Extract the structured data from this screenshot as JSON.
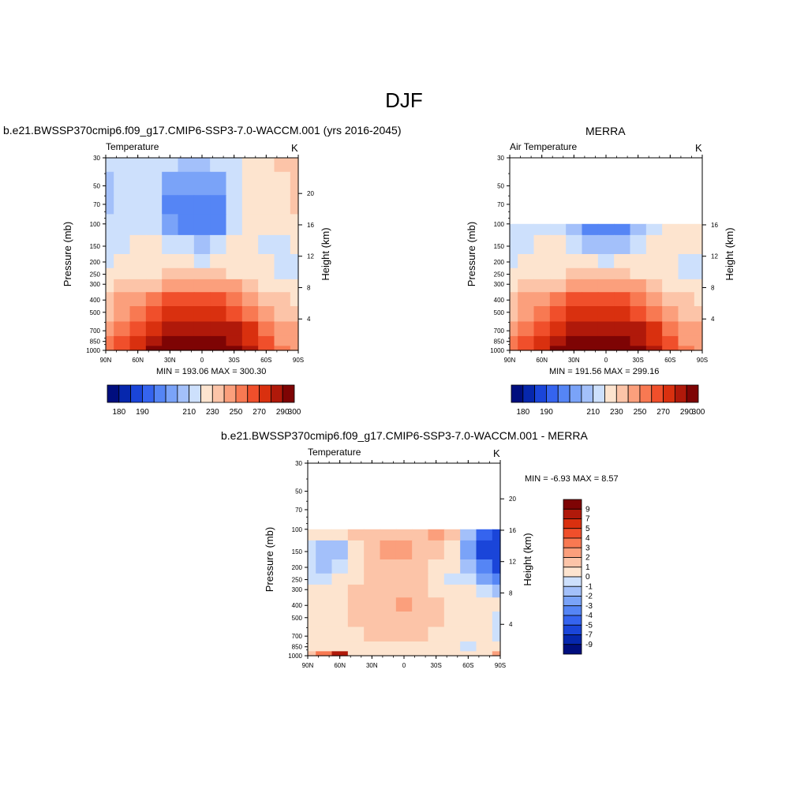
{
  "page": {
    "title": "DJF",
    "var_label": "Temperature",
    "unit": "K"
  },
  "panels": {
    "model": {
      "title": "b.e21.BWSSP370cmip6.f09_g17.CMIP6-SSP3-7.0-WACCM.001 (yrs 2016-2045)",
      "var_label": "Temperature",
      "unit": "K",
      "minmax": "MIN = 193.06  MAX = 300.30"
    },
    "obs": {
      "title": "MERRA",
      "var_label": "Air Temperature",
      "unit": "K",
      "minmax": "MIN = 191.56  MAX = 299.16"
    },
    "diff": {
      "title": "b.e21.BWSSP370cmip6.f09_g17.CMIP6-SSP3-7.0-WACCM.001 - MERRA",
      "var_label": "Temperature",
      "unit": "K",
      "minmax": "MIN =  -6.93  MAX =   8.57"
    }
  },
  "axes": {
    "ylabel_left": "Pressure (mb)",
    "ylabel_right": "Height (km)"
  },
  "colors": {
    "temp_palette": [
      "#000e7e",
      "#0627ad",
      "#1a45d9",
      "#3564ef",
      "#5585f5",
      "#7aa3f8",
      "#a3c0fa",
      "#cde0fc",
      "#fde4cf",
      "#fcc4a8",
      "#fb9f7c",
      "#f87952",
      "#f04f2b",
      "#d9300f",
      "#b0190a",
      "#7e0404"
    ],
    "diff_palette": [
      "#000e7e",
      "#0627ad",
      "#1a45d9",
      "#3564ef",
      "#5585f5",
      "#7aa3f8",
      "#a3c0fa",
      "#cde0fc",
      "#fde4cf",
      "#fcc4a8",
      "#fb9f7c",
      "#f87952",
      "#f04f2b",
      "#d9300f",
      "#b0190a",
      "#7e0404"
    ]
  },
  "chart_data": [
    {
      "type": "heatmap",
      "name": "model",
      "title": "b.e21.BWSSP370cmip6.f09_g17.CMIP6-SSP3-7.0-WACCM.001 (yrs 2016-2045)",
      "subtitle": "Temperature",
      "units": "K",
      "xlabel": "",
      "ylabel": "Pressure (mb)",
      "ylabel_right": "Height (km)",
      "x_ticks": [
        "90N",
        "60N",
        "30N",
        "0",
        "30S",
        "60S",
        "90S"
      ],
      "x_range": [
        90,
        -90
      ],
      "y_ticks": [
        30,
        50,
        70,
        100,
        150,
        200,
        250,
        300,
        400,
        500,
        700,
        850,
        1000
      ],
      "y_scale": "log",
      "y_range": [
        30,
        1000
      ],
      "y_data_bottom": 1000,
      "y_data_top": 30,
      "right_ticks_km": [
        4,
        8,
        12,
        16,
        20
      ],
      "latitudes": [
        90,
        75,
        60,
        45,
        30,
        15,
        0,
        -15,
        -30,
        -45,
        -60,
        -75,
        -90
      ],
      "pressure_levels": [
        30,
        50,
        70,
        100,
        150,
        200,
        250,
        300,
        400,
        500,
        700,
        850,
        1000
      ],
      "values": [
        [
          210,
          212,
          218,
          215,
          210,
          209,
          209,
          210,
          215,
          222,
          225,
          230,
          235
        ],
        [
          208,
          212,
          217,
          212,
          204,
          201,
          201,
          203,
          212,
          222,
          225,
          228,
          232
        ],
        [
          208,
          212,
          216,
          210,
          199,
          195,
          195,
          197,
          210,
          220,
          224,
          227,
          230
        ],
        [
          210,
          213,
          215,
          212,
          202,
          197,
          196,
          199,
          212,
          221,
          222,
          224,
          226
        ],
        [
          216,
          218,
          220,
          220,
          215,
          210,
          208,
          211,
          220,
          222,
          218,
          218,
          220
        ],
        [
          218,
          220,
          222,
          222,
          222,
          220,
          219,
          221,
          223,
          222,
          220,
          215,
          218
        ],
        [
          220,
          224,
          226,
          228,
          230,
          232,
          232,
          231,
          228,
          224,
          220,
          218,
          218
        ],
        [
          225,
          230,
          234,
          238,
          242,
          245,
          245,
          244,
          240,
          233,
          226,
          222,
          222
        ],
        [
          232,
          240,
          248,
          255,
          260,
          262,
          262,
          261,
          256,
          248,
          238,
          230,
          228
        ],
        [
          238,
          248,
          258,
          266,
          272,
          275,
          275,
          274,
          268,
          258,
          245,
          236,
          234
        ],
        [
          245,
          256,
          268,
          278,
          285,
          288,
          288,
          287,
          282,
          270,
          255,
          244,
          240
        ],
        [
          250,
          262,
          275,
          286,
          293,
          296,
          296,
          295,
          289,
          276,
          260,
          248,
          244
        ],
        [
          252,
          265,
          279,
          290,
          297,
          300,
          300,
          299,
          293,
          280,
          264,
          252,
          248
        ]
      ],
      "min": 193.06,
      "max": 300.3,
      "levels": [
        180,
        185,
        190,
        195,
        200,
        205,
        210,
        220,
        230,
        240,
        250,
        260,
        270,
        280,
        290,
        300
      ],
      "colorbar_labels": [
        "180",
        "190",
        "210",
        "230",
        "250",
        "270",
        "290",
        "300"
      ]
    },
    {
      "type": "heatmap",
      "name": "obs",
      "title": "MERRA",
      "subtitle": "Air Temperature",
      "units": "K",
      "xlabel": "",
      "ylabel": "Pressure (mb)",
      "ylabel_right": "Height (km)",
      "x_ticks": [
        "90N",
        "60N",
        "30N",
        "0",
        "30S",
        "60S",
        "90S"
      ],
      "x_range": [
        90,
        -90
      ],
      "y_ticks": [
        30,
        50,
        70,
        100,
        150,
        200,
        250,
        300,
        400,
        500,
        700,
        850,
        1000
      ],
      "y_scale": "log",
      "y_range": [
        30,
        1000
      ],
      "y_data_bottom": 1000,
      "y_data_top": 100,
      "right_ticks_km": [
        4,
        8,
        12,
        16
      ],
      "latitudes": [
        90,
        75,
        60,
        45,
        30,
        15,
        0,
        -15,
        -30,
        -45,
        -60,
        -75,
        -90
      ],
      "pressure_levels": [
        100,
        150,
        200,
        250,
        300,
        400,
        500,
        700,
        850,
        1000
      ],
      "values": [
        [
          213,
          216,
          218,
          214,
          206,
          198,
          195,
          198,
          206,
          215,
          222,
          225,
          226
        ],
        [
          215,
          218,
          220,
          220,
          214,
          208,
          206,
          209,
          216,
          222,
          222,
          222,
          222
        ],
        [
          218,
          220,
          222,
          223,
          222,
          220,
          219,
          220,
          223,
          223,
          222,
          218,
          216
        ],
        [
          220,
          224,
          226,
          228,
          230,
          232,
          232,
          231,
          228,
          224,
          221,
          218,
          217
        ],
        [
          225,
          230,
          234,
          238,
          242,
          245,
          245,
          244,
          240,
          233,
          226,
          222,
          221
        ],
        [
          232,
          240,
          248,
          255,
          260,
          262,
          262,
          261,
          256,
          248,
          238,
          230,
          228
        ],
        [
          238,
          248,
          258,
          266,
          272,
          275,
          275,
          274,
          268,
          258,
          245,
          236,
          234
        ],
        [
          245,
          256,
          268,
          278,
          285,
          288,
          288,
          287,
          282,
          270,
          255,
          244,
          240
        ],
        [
          250,
          262,
          275,
          286,
          293,
          296,
          296,
          295,
          289,
          276,
          260,
          248,
          244
        ],
        [
          252,
          265,
          279,
          290,
          297,
          299,
          299,
          298,
          292,
          280,
          264,
          252,
          248
        ]
      ],
      "min": 191.56,
      "max": 299.16,
      "levels": [
        180,
        185,
        190,
        195,
        200,
        205,
        210,
        220,
        230,
        240,
        250,
        260,
        270,
        280,
        290,
        300
      ],
      "colorbar_labels": [
        "180",
        "190",
        "210",
        "230",
        "250",
        "270",
        "290",
        "300"
      ]
    },
    {
      "type": "heatmap",
      "name": "diff",
      "title": "b.e21.BWSSP370cmip6.f09_g17.CMIP6-SSP3-7.0-WACCM.001 - MERRA",
      "subtitle": "Temperature",
      "units": "K",
      "xlabel": "",
      "ylabel": "Pressure (mb)",
      "ylabel_right": "Height (km)",
      "x_ticks": [
        "90N",
        "60N",
        "30N",
        "0",
        "30S",
        "60S",
        "90S"
      ],
      "x_range": [
        90,
        -90
      ],
      "y_ticks": [
        30,
        50,
        70,
        100,
        150,
        200,
        250,
        300,
        400,
        500,
        700,
        850,
        1000
      ],
      "y_scale": "log",
      "y_range": [
        30,
        1000
      ],
      "y_data_bottom": 1000,
      "y_data_top": 100,
      "right_ticks_km": [
        4,
        8,
        12,
        16,
        20
      ],
      "latitudes": [
        90,
        75,
        60,
        45,
        30,
        15,
        0,
        -15,
        -30,
        -45,
        -60,
        -75,
        -90
      ],
      "pressure_levels": [
        100,
        150,
        200,
        250,
        300,
        400,
        500,
        700,
        850,
        1000
      ],
      "values": [
        [
          0.5,
          0.5,
          0.5,
          1.0,
          1.2,
          1.5,
          1.5,
          1.5,
          2.0,
          1.0,
          -1.5,
          -5.0,
          -6.5
        ],
        [
          -0.5,
          -2.0,
          -1.5,
          0.5,
          1.5,
          2.0,
          2.2,
          1.5,
          1.0,
          0.5,
          -2.5,
          -5.5,
          -6.9
        ],
        [
          -0.5,
          -1.5,
          -1.0,
          0.5,
          1.2,
          1.5,
          1.5,
          1.2,
          0.8,
          0.0,
          -2.0,
          -4.0,
          -5.5
        ],
        [
          -0.3,
          -0.5,
          0.5,
          0.5,
          1.0,
          1.2,
          1.2,
          1.0,
          0.6,
          -0.5,
          -1.0,
          -2.5,
          -3.5
        ],
        [
          0.5,
          0.5,
          0.5,
          1.0,
          1.0,
          1.2,
          1.2,
          1.0,
          0.6,
          0.5,
          0.0,
          -1.0,
          -1.5
        ],
        [
          0.5,
          0.5,
          0.5,
          1.0,
          1.0,
          1.5,
          2.0,
          1.5,
          1.0,
          0.5,
          0.5,
          0.5,
          0.0
        ],
        [
          0.5,
          0.5,
          0.5,
          1.0,
          1.0,
          1.2,
          1.2,
          1.0,
          1.0,
          0.5,
          0.5,
          0.5,
          -0.5
        ],
        [
          0.5,
          0.5,
          0.5,
          0.5,
          1.0,
          1.0,
          1.0,
          1.0,
          0.5,
          0.5,
          0.5,
          0.5,
          -0.5
        ],
        [
          0.5,
          0.5,
          0.5,
          0.5,
          0.5,
          0.5,
          0.5,
          0.5,
          0.5,
          0.5,
          -0.5,
          0.5,
          0.5
        ],
        [
          1.5,
          3.0,
          8.0,
          0.5,
          0.5,
          0.5,
          0.5,
          0.5,
          0.5,
          0.5,
          0.5,
          0.5,
          2.0
        ]
      ],
      "min": -6.93,
      "max": 8.57,
      "levels": [
        -9,
        -7,
        -5,
        -4,
        -3,
        -2,
        -1,
        0,
        1,
        2,
        3,
        4,
        5,
        7,
        9
      ],
      "colorbar_labels": [
        "9",
        "7",
        "5",
        "4",
        "3",
        "2",
        "1",
        "0",
        "-1",
        "-2",
        "-3",
        "-4",
        "-5",
        "-7",
        "-9"
      ]
    }
  ]
}
